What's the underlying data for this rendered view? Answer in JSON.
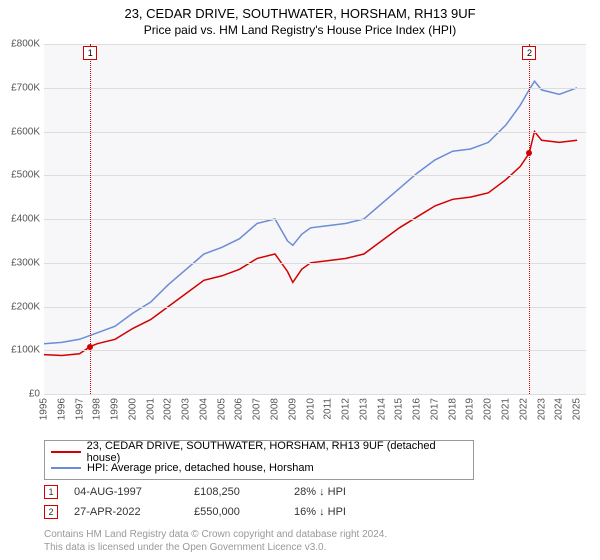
{
  "title": "23, CEDAR DRIVE, SOUTHWATER, HORSHAM, RH13 9UF",
  "subtitle": "Price paid vs. HM Land Registry's House Price Index (HPI)",
  "chart": {
    "type": "line",
    "background_color": "#f7f7f9",
    "grid_color": "#dddddd",
    "ylim": [
      0,
      800000
    ],
    "ytick_step": 100000,
    "yticks": [
      "£0",
      "£100K",
      "£200K",
      "£300K",
      "£400K",
      "£500K",
      "£600K",
      "£700K",
      "£800K"
    ],
    "xlim": [
      1995,
      2025.5
    ],
    "xticks": [
      1995,
      1996,
      1997,
      1998,
      1999,
      2000,
      2001,
      2002,
      2003,
      2004,
      2005,
      2006,
      2007,
      2008,
      2009,
      2010,
      2011,
      2012,
      2013,
      2014,
      2015,
      2016,
      2017,
      2018,
      2019,
      2020,
      2021,
      2022,
      2023,
      2024,
      2025
    ],
    "tick_fontsize": 10,
    "series": [
      {
        "name": "23, CEDAR DRIVE, SOUTHWATER, HORSHAM, RH13 9UF (detached house)",
        "color": "#d40000",
        "line_width": 1.5,
        "data": [
          [
            1995,
            90000
          ],
          [
            1996,
            88000
          ],
          [
            1997,
            92000
          ],
          [
            1997.6,
            108250
          ],
          [
            1998,
            115000
          ],
          [
            1999,
            125000
          ],
          [
            2000,
            150000
          ],
          [
            2001,
            170000
          ],
          [
            2002,
            200000
          ],
          [
            2003,
            230000
          ],
          [
            2004,
            260000
          ],
          [
            2005,
            270000
          ],
          [
            2006,
            285000
          ],
          [
            2007,
            310000
          ],
          [
            2008,
            320000
          ],
          [
            2008.7,
            280000
          ],
          [
            2009,
            255000
          ],
          [
            2009.5,
            285000
          ],
          [
            2010,
            300000
          ],
          [
            2011,
            305000
          ],
          [
            2012,
            310000
          ],
          [
            2013,
            320000
          ],
          [
            2014,
            350000
          ],
          [
            2015,
            380000
          ],
          [
            2016,
            405000
          ],
          [
            2017,
            430000
          ],
          [
            2018,
            445000
          ],
          [
            2019,
            450000
          ],
          [
            2020,
            460000
          ],
          [
            2021,
            490000
          ],
          [
            2021.8,
            520000
          ],
          [
            2022.3,
            550000
          ],
          [
            2022.6,
            600000
          ],
          [
            2023,
            580000
          ],
          [
            2024,
            575000
          ],
          [
            2025,
            580000
          ]
        ]
      },
      {
        "name": "HPI: Average price, detached house, Horsham",
        "color": "#6b8cd6",
        "line_width": 1.5,
        "data": [
          [
            1995,
            115000
          ],
          [
            1996,
            118000
          ],
          [
            1997,
            125000
          ],
          [
            1998,
            140000
          ],
          [
            1999,
            155000
          ],
          [
            2000,
            185000
          ],
          [
            2001,
            210000
          ],
          [
            2002,
            250000
          ],
          [
            2003,
            285000
          ],
          [
            2004,
            320000
          ],
          [
            2005,
            335000
          ],
          [
            2006,
            355000
          ],
          [
            2007,
            390000
          ],
          [
            2008,
            400000
          ],
          [
            2008.7,
            350000
          ],
          [
            2009,
            340000
          ],
          [
            2009.5,
            365000
          ],
          [
            2010,
            380000
          ],
          [
            2011,
            385000
          ],
          [
            2012,
            390000
          ],
          [
            2013,
            400000
          ],
          [
            2014,
            435000
          ],
          [
            2015,
            470000
          ],
          [
            2016,
            505000
          ],
          [
            2017,
            535000
          ],
          [
            2018,
            555000
          ],
          [
            2019,
            560000
          ],
          [
            2020,
            575000
          ],
          [
            2021,
            615000
          ],
          [
            2021.8,
            660000
          ],
          [
            2022.3,
            695000
          ],
          [
            2022.6,
            715000
          ],
          [
            2023,
            695000
          ],
          [
            2024,
            685000
          ],
          [
            2025,
            700000
          ]
        ]
      }
    ],
    "sale_markers": [
      {
        "n": 1,
        "x": 1997.6,
        "y": 108250,
        "color": "#d40000"
      },
      {
        "n": 2,
        "x": 2022.32,
        "y": 550000,
        "color": "#d40000"
      }
    ]
  },
  "legend": {
    "items": [
      {
        "color": "#d40000",
        "label": "23, CEDAR DRIVE, SOUTHWATER, HORSHAM, RH13 9UF (detached house)"
      },
      {
        "color": "#6b8cd6",
        "label": "HPI: Average price, detached house, Horsham"
      }
    ]
  },
  "sales": [
    {
      "n": 1,
      "color": "#d40000",
      "date": "04-AUG-1997",
      "price": "£108,250",
      "delta": "28% ↓ HPI"
    },
    {
      "n": 2,
      "color": "#d40000",
      "date": "27-APR-2022",
      "price": "£550,000",
      "delta": "16% ↓ HPI"
    }
  ],
  "footer_line1": "Contains HM Land Registry data © Crown copyright and database right 2024.",
  "footer_line2": "This data is licensed under the Open Government Licence v3.0."
}
